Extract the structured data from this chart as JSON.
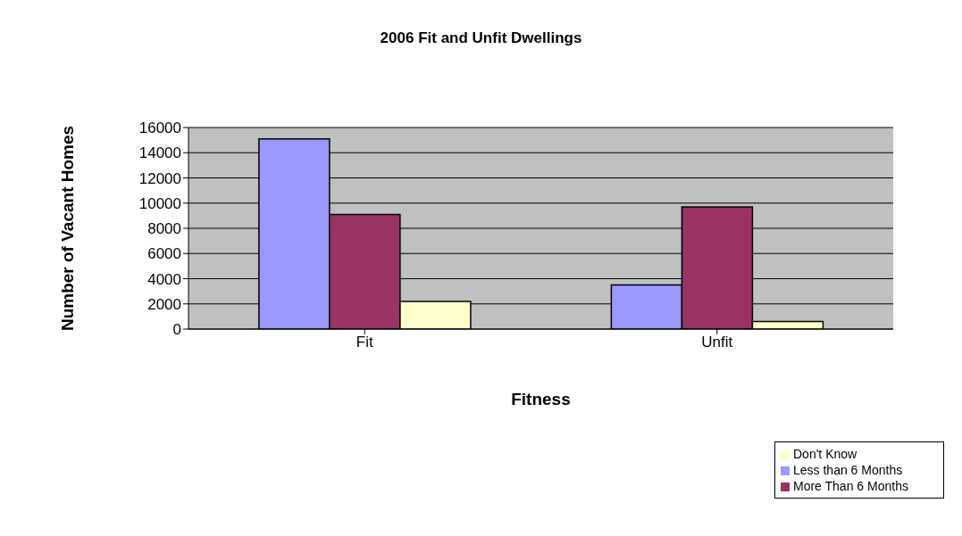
{
  "chart_data": {
    "type": "bar",
    "title": "2006 Fit and Unfit Dwellings",
    "xlabel": "Fitness",
    "ylabel": "Number of Vacant Homes",
    "categories": [
      "Fit",
      "Unfit"
    ],
    "series": [
      {
        "name": "Less than 6 Months",
        "color": "#9999ff",
        "values": [
          15100,
          3500
        ]
      },
      {
        "name": "More Than 6 Months",
        "color": "#993366",
        "values": [
          9100,
          9700
        ]
      },
      {
        "name": "Don't Know",
        "color": "#ffffcc",
        "values": [
          2200,
          600
        ]
      }
    ],
    "ylim": [
      0,
      16000
    ],
    "yticks": [
      0,
      2000,
      4000,
      6000,
      8000,
      10000,
      12000,
      14000,
      16000
    ],
    "grid": "y",
    "legend": "bottom right"
  }
}
